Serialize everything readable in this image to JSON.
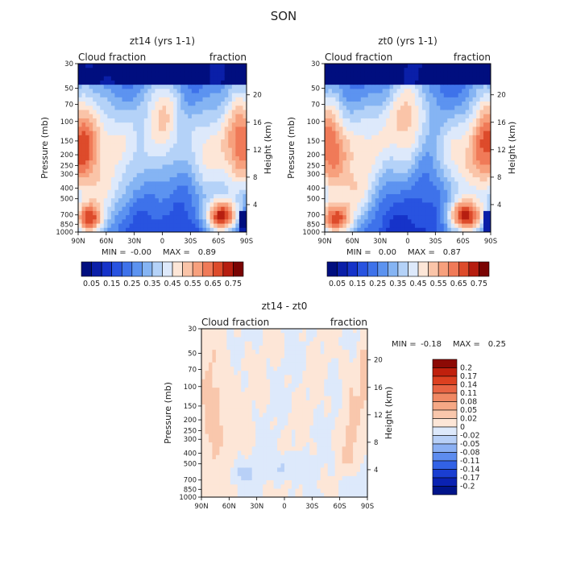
{
  "figure": {
    "title": "SON",
    "lat_ticks": [
      "90N",
      "60N",
      "30N",
      "0",
      "30S",
      "60S",
      "90S"
    ],
    "pressure_ticks": [
      "30",
      "50",
      "70",
      "100",
      "150",
      "200",
      "250",
      "300",
      "400",
      "500",
      "700",
      "850",
      "1000"
    ],
    "height_ticks": [
      "20",
      "16",
      "12",
      "8",
      "4"
    ],
    "left_axis_label": "Pressure (mb)",
    "right_axis_label": "Height (km)",
    "left_corner_label": "Cloud fraction",
    "right_corner_label": "fraction"
  },
  "colors": {
    "abs_scale": [
      "#000e7f",
      "#0a1fa8",
      "#1633c9",
      "#2853e0",
      "#3e72ea",
      "#5c93f0",
      "#85b4f3",
      "#b4d2f8",
      "#dde9fb",
      "#fde6d7",
      "#fac4a8",
      "#f7a07d",
      "#f07a58",
      "#dd4b2b",
      "#b61e10",
      "#7a0403"
    ],
    "diff_scale": [
      "#00148a",
      "#0a22b2",
      "#1a3ed1",
      "#3262e6",
      "#5d8cef",
      "#8bb0f3",
      "#b8d0f7",
      "#dde9fb",
      "#fde6d7",
      "#f9c7ac",
      "#f6a885",
      "#f08863",
      "#e86443",
      "#dc4020",
      "#c0200d",
      "#8c0a05"
    ]
  },
  "colorbar_labels": {
    "absolute": [
      "0.05",
      "0.15",
      "0.25",
      "0.35",
      "0.45",
      "0.55",
      "0.65",
      "0.75"
    ],
    "difference": [
      "0.2",
      "0.17",
      "0.14",
      "0.11",
      "0.08",
      "0.05",
      "0.02",
      "0",
      "-0.02",
      "-0.05",
      "-0.08",
      "-0.11",
      "-0.14",
      "-0.17",
      "-0.2"
    ]
  },
  "chart_data": [
    {
      "type": "heatmap",
      "title": "zt14 (yrs 1-1)",
      "xlabel": "",
      "ylabel": "Pressure (mb)",
      "y2label": "Height (km)",
      "x_range": [
        "90N",
        "90S"
      ],
      "y_range_mb": [
        30,
        1000
      ],
      "min_label": "MIN =",
      "min_value": "-0.00",
      "max_label": "MAX =",
      "max_value": "0.89",
      "levels": [
        0.05,
        0.1,
        0.15,
        0.2,
        0.25,
        0.3,
        0.35,
        0.4,
        0.45,
        0.5,
        0.55,
        0.6,
        0.65,
        0.7,
        0.75
      ]
    },
    {
      "type": "heatmap",
      "title": "zt0 (yrs 1-1)",
      "xlabel": "",
      "ylabel": "Pressure (mb)",
      "y2label": "Height (km)",
      "x_range": [
        "90N",
        "90S"
      ],
      "y_range_mb": [
        30,
        1000
      ],
      "min_label": "MIN =",
      "min_value": "0.00",
      "max_label": "MAX =",
      "max_value": "0.87",
      "levels": [
        0.05,
        0.1,
        0.15,
        0.2,
        0.25,
        0.3,
        0.35,
        0.4,
        0.45,
        0.5,
        0.55,
        0.6,
        0.65,
        0.7,
        0.75
      ]
    },
    {
      "type": "heatmap",
      "title": "zt14 - zt0",
      "xlabel": "",
      "ylabel": "Pressure (mb)",
      "y2label": "Height (km)",
      "x_range": [
        "90N",
        "90S"
      ],
      "y_range_mb": [
        30,
        1000
      ],
      "min_label": "MIN =",
      "min_value": "-0.18",
      "max_label": "MAX =",
      "max_value": "0.25",
      "levels": [
        -0.2,
        -0.17,
        -0.14,
        -0.11,
        -0.08,
        -0.05,
        -0.02,
        0,
        0.02,
        0.05,
        0.08,
        0.11,
        0.14,
        0.17,
        0.2
      ]
    }
  ]
}
